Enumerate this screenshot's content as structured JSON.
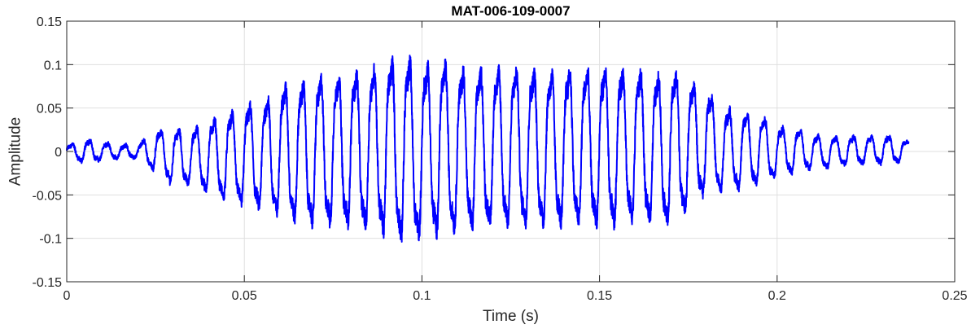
{
  "chart_data": {
    "type": "line",
    "title": "MAT-006-109-0007",
    "xlabel": "Time (s)",
    "ylabel": "Amplitude",
    "xlim": [
      0,
      0.25
    ],
    "ylim": [
      -0.15,
      0.15
    ],
    "xticks": [
      0,
      0.05,
      0.1,
      0.15,
      0.2,
      0.25
    ],
    "xtick_labels": [
      "0",
      "0.05",
      "0.1",
      "0.15",
      "0.2",
      "0.25"
    ],
    "yticks": [
      -0.15,
      -0.1,
      -0.05,
      0,
      0.05,
      0.1,
      0.15
    ],
    "ytick_labels": [
      "-0.15",
      "-0.1",
      "-0.05",
      "0",
      "0.05",
      "0.1",
      "0.15"
    ],
    "grid": true,
    "series": [
      {
        "color": "#0000ff",
        "signal_duration": 0.237,
        "dominant_frequency": 200,
        "envelope": {
          "t": [
            0,
            0.005,
            0.01,
            0.015,
            0.02,
            0.025,
            0.03,
            0.035,
            0.04,
            0.045,
            0.05,
            0.055,
            0.06,
            0.065,
            0.07,
            0.075,
            0.08,
            0.085,
            0.09,
            0.095,
            0.1,
            0.105,
            0.11,
            0.115,
            0.12,
            0.125,
            0.13,
            0.135,
            0.14,
            0.145,
            0.15,
            0.155,
            0.16,
            0.165,
            0.17,
            0.175,
            0.18,
            0.185,
            0.19,
            0.195,
            0.2,
            0.205,
            0.21,
            0.215,
            0.22,
            0.225,
            0.23,
            0.237
          ],
          "upper": [
            0.006,
            0.015,
            0.01,
            0.008,
            0.008,
            0.025,
            0.028,
            0.025,
            0.038,
            0.045,
            0.055,
            0.06,
            0.08,
            0.082,
            0.09,
            0.092,
            0.095,
            0.1,
            0.11,
            0.115,
            0.105,
            0.11,
            0.1,
            0.1,
            0.1,
            0.1,
            0.1,
            0.095,
            0.1,
            0.1,
            0.1,
            0.1,
            0.1,
            0.09,
            0.1,
            0.085,
            0.075,
            0.052,
            0.048,
            0.045,
            0.03,
            0.028,
            0.02,
            0.018,
            0.018,
            0.018,
            0.02,
            0.012
          ],
          "lower": [
            -0.004,
            -0.015,
            -0.01,
            -0.008,
            -0.008,
            -0.025,
            -0.04,
            -0.04,
            -0.05,
            -0.06,
            -0.065,
            -0.07,
            -0.08,
            -0.085,
            -0.09,
            -0.09,
            -0.09,
            -0.095,
            -0.1,
            -0.11,
            -0.105,
            -0.1,
            -0.095,
            -0.095,
            -0.09,
            -0.09,
            -0.09,
            -0.09,
            -0.09,
            -0.09,
            -0.09,
            -0.09,
            -0.085,
            -0.085,
            -0.09,
            -0.07,
            -0.05,
            -0.05,
            -0.045,
            -0.04,
            -0.03,
            -0.025,
            -0.02,
            -0.02,
            -0.015,
            -0.015,
            -0.015,
            -0.012
          ]
        }
      }
    ]
  }
}
